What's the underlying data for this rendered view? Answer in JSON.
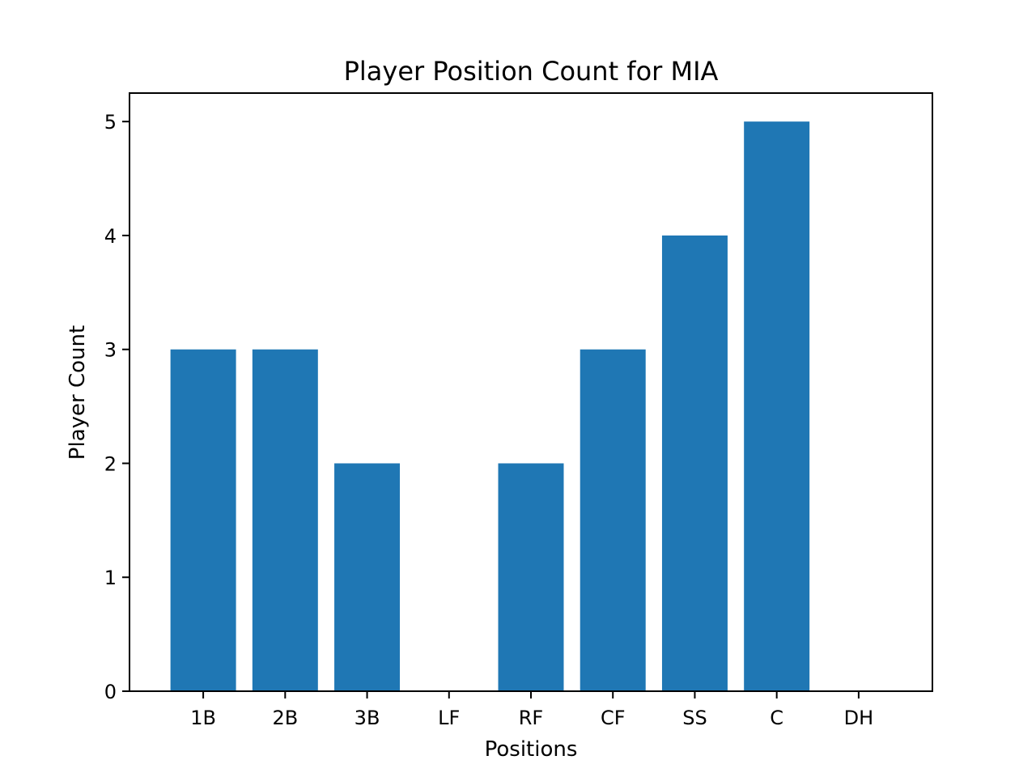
{
  "chart_data": {
    "type": "bar",
    "title": "Player Position Count for MIA",
    "xlabel": "Positions",
    "ylabel": "Player Count",
    "categories": [
      "1B",
      "2B",
      "3B",
      "LF",
      "RF",
      "CF",
      "SS",
      "C",
      "DH"
    ],
    "values": [
      3,
      3,
      2,
      0,
      2,
      3,
      4,
      5,
      0
    ],
    "ylim": [
      0,
      5.25
    ],
    "yticks": [
      0,
      1,
      2,
      3,
      4,
      5
    ],
    "grid": false,
    "bar_color": "#1f77b4"
  }
}
